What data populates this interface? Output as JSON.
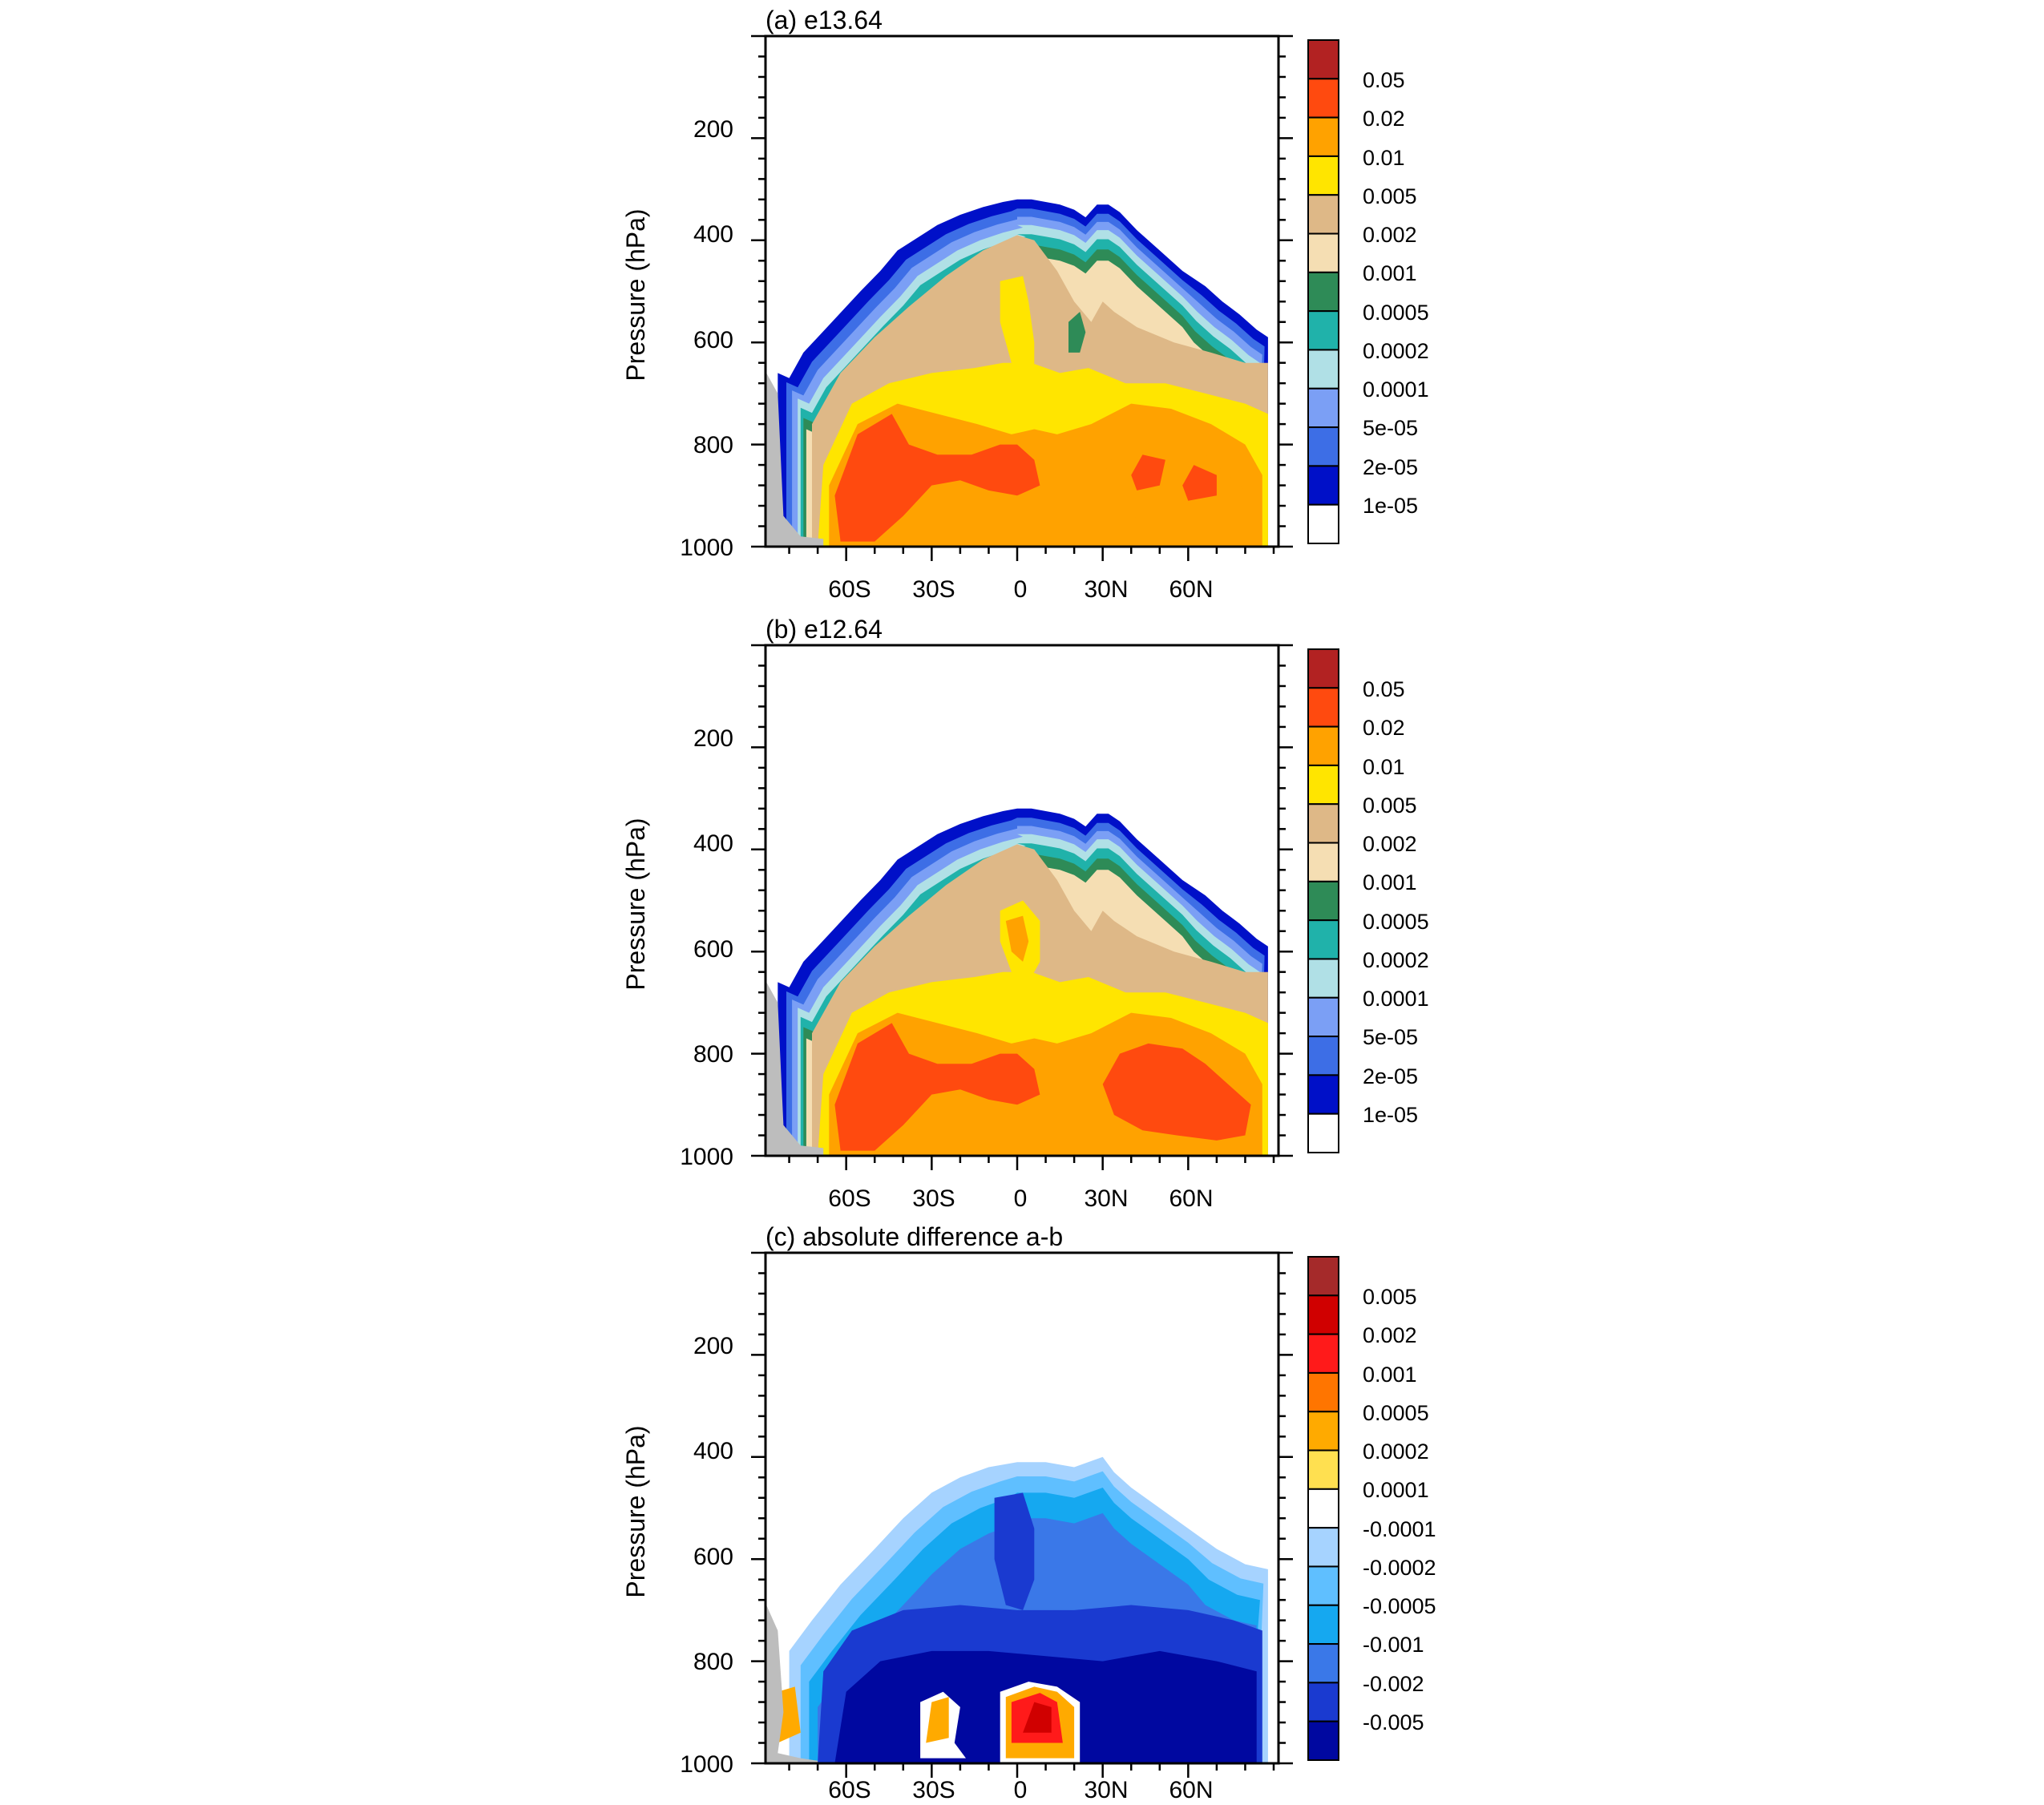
{
  "chart_data": [
    {
      "type": "heatmap",
      "title": "(a) e13.64",
      "ylabel": "Pressure (hPa)",
      "y_ticks": [
        "200",
        "400",
        "600",
        "800",
        "1000"
      ],
      "x_ticks": [
        "60S",
        "30S",
        "0",
        "30N",
        "60N"
      ],
      "x_range": [
        -85,
        90
      ],
      "ylim": [
        0,
        1000
      ],
      "colorbar_labels": [
        "0.05",
        "0.02",
        "0.01",
        "0.005",
        "0.002",
        "0.001",
        "0.0005",
        "0.0002",
        "0.0001",
        "5e-05",
        "2e-05",
        "1e-05"
      ],
      "colorbar_colors": [
        "#b22222",
        "#ff4a0f",
        "#ffa200",
        "#ffe500",
        "#deb887",
        "#f5deb3",
        "#2e8b57",
        "#20b2aa",
        "#b0e0e6",
        "#7b9ff5",
        "#3d6ee6",
        "#0010c8",
        "#ffffff"
      ]
    },
    {
      "type": "heatmap",
      "title": "(b) e12.64",
      "ylabel": "Pressure (hPa)",
      "y_ticks": [
        "200",
        "400",
        "600",
        "800",
        "1000"
      ],
      "x_ticks": [
        "60S",
        "30S",
        "0",
        "30N",
        "60N"
      ],
      "x_range": [
        -85,
        90
      ],
      "ylim": [
        0,
        1000
      ],
      "colorbar_labels": [
        "0.05",
        "0.02",
        "0.01",
        "0.005",
        "0.002",
        "0.001",
        "0.0005",
        "0.0002",
        "0.0001",
        "5e-05",
        "2e-05",
        "1e-05"
      ],
      "colorbar_colors": [
        "#b22222",
        "#ff4a0f",
        "#ffa200",
        "#ffe500",
        "#deb887",
        "#f5deb3",
        "#2e8b57",
        "#20b2aa",
        "#b0e0e6",
        "#7b9ff5",
        "#3d6ee6",
        "#0010c8",
        "#ffffff"
      ]
    },
    {
      "type": "heatmap",
      "title": "(c) absolute difference a-b",
      "ylabel": "Pressure (hPa)",
      "y_ticks": [
        "200",
        "400",
        "600",
        "800",
        "1000"
      ],
      "x_ticks": [
        "60S",
        "30S",
        "0",
        "30N",
        "60N"
      ],
      "x_range": [
        -85,
        90
      ],
      "ylim": [
        0,
        1000
      ],
      "colorbar_labels": [
        "0.005",
        "0.002",
        "0.001",
        "0.0005",
        "0.0002",
        "0.0001",
        "-0.0001",
        "-0.0002",
        "-0.0005",
        "-0.001",
        "-0.002",
        "-0.005"
      ],
      "colorbar_colors": [
        "#a52a2a",
        "#d00000",
        "#ff1a1a",
        "#ff7500",
        "#ffaa00",
        "#ffe050",
        "#ffffff",
        "#a6d3ff",
        "#5fbfff",
        "#15a8f0",
        "#3a78e8",
        "#1a3ad0",
        "#0008a0"
      ]
    }
  ]
}
